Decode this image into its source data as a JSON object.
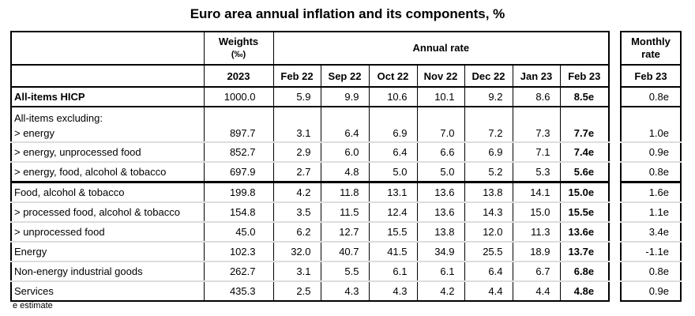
{
  "title": "Euro area annual inflation and its components, %",
  "header": {
    "weights": "Weights",
    "weights_unit": "(‰)",
    "weights_year": "2023",
    "annual_rate": "Annual rate",
    "monthly_rate": "Monthly rate",
    "monthly_period": "Feb 23",
    "periods": [
      "Feb 22",
      "Sep 22",
      "Oct 22",
      "Nov 22",
      "Dec 22",
      "Jan 23",
      "Feb 23"
    ]
  },
  "rows": [
    {
      "label": "All-items HICP",
      "weight": "1000.0",
      "annual": [
        "5.9",
        "9.9",
        "10.6",
        "10.1",
        "9.2",
        "8.6",
        "8.5e"
      ],
      "monthly": "0.8e"
    },
    {
      "pre_label": "All-items excluding:",
      "label": "> energy",
      "weight": "897.7",
      "annual": [
        "3.1",
        "6.4",
        "6.9",
        "7.0",
        "7.2",
        "7.3",
        "7.7e"
      ],
      "monthly": "1.0e"
    },
    {
      "label": "> energy, unprocessed food",
      "weight": "852.7",
      "annual": [
        "2.9",
        "6.0",
        "6.4",
        "6.6",
        "6.9",
        "7.1",
        "7.4e"
      ],
      "monthly": "0.9e"
    },
    {
      "label": "> energy, food, alcohol & tobacco",
      "weight": "697.9",
      "annual": [
        "2.7",
        "4.8",
        "5.0",
        "5.0",
        "5.2",
        "5.3",
        "5.6e"
      ],
      "monthly": "0.8e"
    },
    {
      "label": "Food, alcohol & tobacco",
      "weight": "199.8",
      "annual": [
        "4.2",
        "11.8",
        "13.1",
        "13.6",
        "13.8",
        "14.1",
        "15.0e"
      ],
      "monthly": "1.6e"
    },
    {
      "label": "> processed food, alcohol & tobacco",
      "weight": "154.8",
      "annual": [
        "3.5",
        "11.5",
        "12.4",
        "13.6",
        "14.3",
        "15.0",
        "15.5e"
      ],
      "monthly": "1.1e"
    },
    {
      "label": "> unprocessed food",
      "weight": "45.0",
      "annual": [
        "6.2",
        "12.7",
        "15.5",
        "13.8",
        "12.0",
        "11.3",
        "13.6e"
      ],
      "monthly": "3.4e"
    },
    {
      "label": "Energy",
      "weight": "102.3",
      "annual": [
        "32.0",
        "40.7",
        "41.5",
        "34.9",
        "25.5",
        "18.9",
        "13.7e"
      ],
      "monthly": "-1.1e"
    },
    {
      "label": "Non-energy industrial goods",
      "weight": "262.7",
      "annual": [
        "3.1",
        "5.5",
        "6.1",
        "6.1",
        "6.4",
        "6.7",
        "6.8e"
      ],
      "monthly": "0.8e"
    },
    {
      "label": "Services",
      "weight": "435.3",
      "annual": [
        "2.5",
        "4.3",
        "4.3",
        "4.2",
        "4.4",
        "4.4",
        "4.8e"
      ],
      "monthly": "0.9e"
    }
  ],
  "footnote": "e estimate"
}
